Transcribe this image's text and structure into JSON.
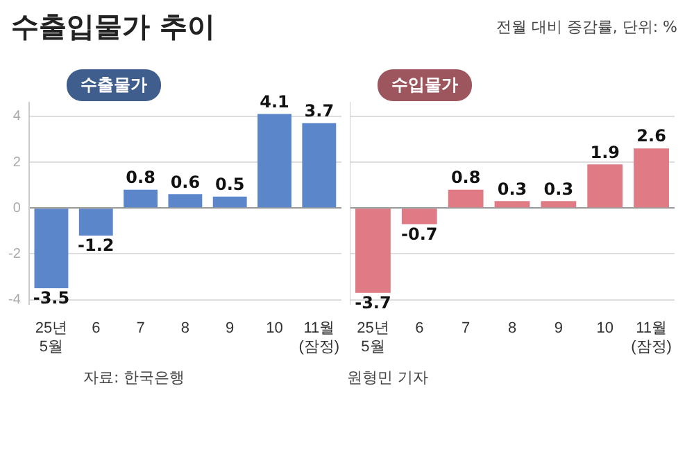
{
  "chart_data": [
    {
      "type": "bar",
      "title": "수출입물가 추이",
      "categories": [
        "25년\n5월",
        "6",
        "7",
        "8",
        "9",
        "10",
        "11월\n(잠정)"
      ],
      "series": [
        {
          "name": "수출물가",
          "color": "#5b86c9",
          "values": [
            -3.5,
            -1.2,
            0.8,
            0.6,
            0.5,
            4.1,
            3.7
          ]
        }
      ],
      "ylim": [
        -4.2,
        4.6
      ],
      "yticks": [
        -4,
        -2,
        0,
        2,
        4
      ],
      "grid": "y",
      "data_labels": true,
      "legend": "top left",
      "annotations": [
        "자료: 한국은행"
      ]
    },
    {
      "type": "bar",
      "subtitle": "전월 대비 증감률, 단위: %",
      "annotations": [
        "원형민 기자"
      ],
      "categories": [
        "25년\n5월",
        "6",
        "7",
        "8",
        "9",
        "10",
        "11월\n(잠정)"
      ],
      "series": [
        {
          "name": "수입물가",
          "color": "#e07b85",
          "values": [
            -3.7,
            -0.7,
            0.8,
            0.3,
            0.3,
            1.9,
            2.6
          ]
        }
      ],
      "ylim": [
        -4.2,
        4.6
      ],
      "yticks": [
        -4,
        -2,
        0,
        2,
        4
      ],
      "grid": "y",
      "data_labels": true,
      "legend": "top left",
      "tick_labels": "x"
    }
  ]
}
